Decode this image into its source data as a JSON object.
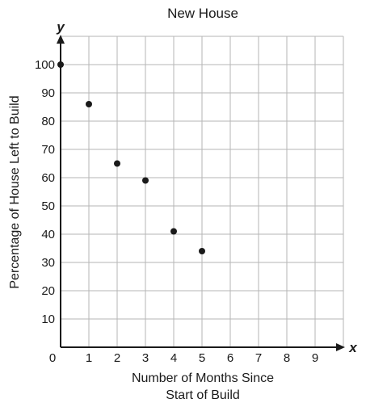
{
  "chart_data": {
    "type": "scatter",
    "title": "New House",
    "xlabel": [
      "Number of Months Since",
      "Start of Build"
    ],
    "ylabel": "Percentage of House Left to Build",
    "x_axis_var": "x",
    "y_axis_var": "y",
    "xlim": [
      0,
      10
    ],
    "ylim": [
      0,
      110
    ],
    "x_ticks": [
      0,
      1,
      2,
      3,
      4,
      5,
      6,
      7,
      8,
      9
    ],
    "y_ticks": [
      10,
      20,
      30,
      40,
      50,
      60,
      70,
      80,
      90,
      100
    ],
    "grid": true,
    "series": [
      {
        "x": [
          0,
          1,
          2,
          3,
          4,
          5
        ],
        "y": [
          100,
          86,
          65,
          59,
          41,
          34
        ]
      }
    ],
    "colors": {
      "point": "#1a1a1a",
      "axis": "#1a1a1a",
      "grid": "#b5b5b5"
    }
  }
}
